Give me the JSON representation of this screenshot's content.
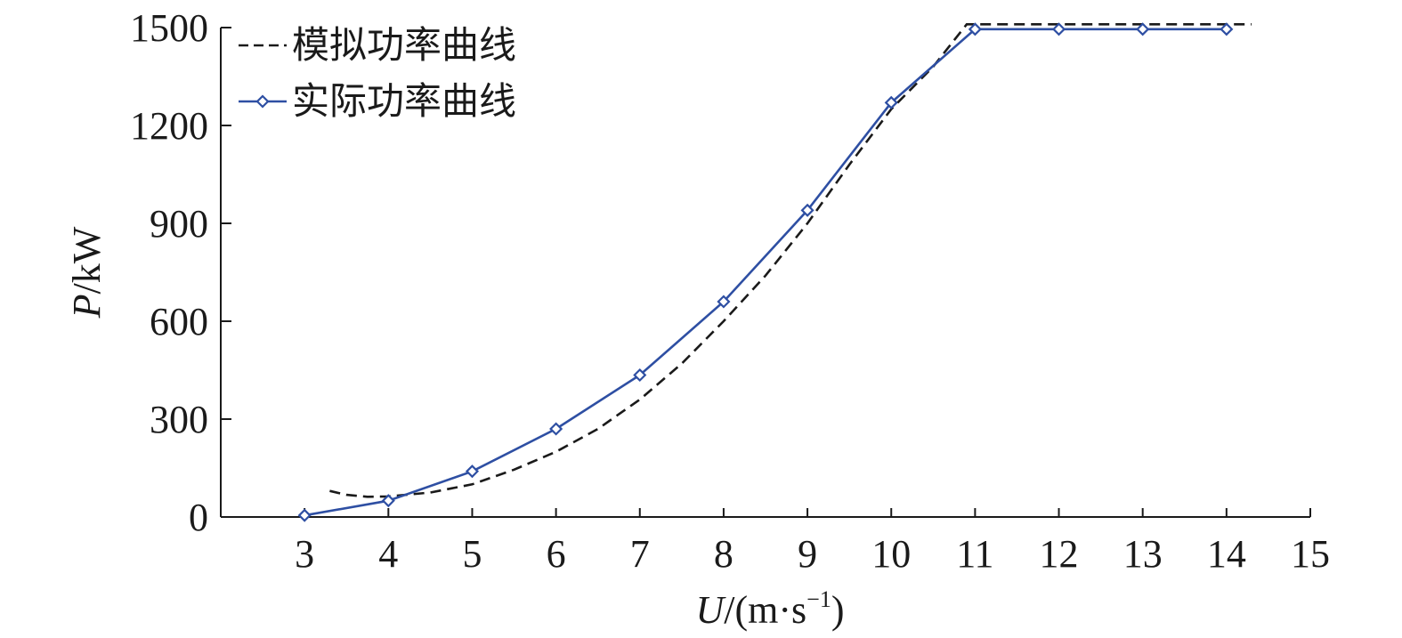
{
  "chart_data": {
    "type": "line",
    "xlabel_var": "U",
    "xlabel_unit_prefix": "/(m·s",
    "xlabel_unit_sup": "−1",
    "xlabel_unit_suffix": ")",
    "ylabel_var": "P",
    "ylabel_unit": "/kW",
    "xlim": [
      2,
      15
    ],
    "ylim": [
      0,
      1500
    ],
    "x_ticks": [
      "3",
      "4",
      "5",
      "6",
      "7",
      "8",
      "9",
      "10",
      "11",
      "12",
      "13",
      "14",
      "15"
    ],
    "y_ticks": [
      "0",
      "300",
      "600",
      "900",
      "1200",
      "1500"
    ],
    "grid": false,
    "legend_position": "top-left",
    "series": [
      {
        "name": "模拟功率曲线",
        "style": "dashed",
        "color": "#1a1a1a",
        "x": [
          3.3,
          3.5,
          3.75,
          4,
          4.5,
          5,
          5.5,
          6,
          6.5,
          7,
          7.5,
          8,
          8.5,
          9,
          9.5,
          10,
          10.5,
          10.9,
          11,
          12,
          13,
          14,
          14.3
        ],
        "y": [
          80,
          68,
          62,
          63,
          75,
          100,
          145,
          200,
          270,
          360,
          470,
          600,
          740,
          900,
          1080,
          1250,
          1380,
          1510,
          1510,
          1510,
          1510,
          1510,
          1510
        ]
      },
      {
        "name": "实际功率曲线",
        "style": "solid",
        "marker": "diamond",
        "color": "#2e4fa3",
        "x": [
          3,
          4,
          5,
          6,
          7,
          8,
          9,
          10,
          11,
          12,
          13,
          14
        ],
        "y": [
          5,
          50,
          140,
          270,
          435,
          660,
          940,
          1270,
          1495,
          1495,
          1495,
          1495
        ]
      }
    ]
  }
}
